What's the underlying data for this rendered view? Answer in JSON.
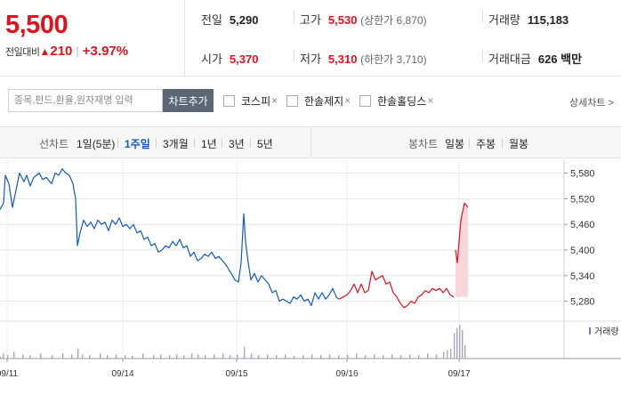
{
  "summary": {
    "price": "5,500",
    "change_label": "전일대비",
    "change_arrow": "▲",
    "change_value": "210",
    "change_sep": "|",
    "change_pct": "+3.97%",
    "prev_close_label": "전일",
    "prev_close": "5,290",
    "high_label": "고가",
    "high": "5,530",
    "upper_limit": "(상한가 6,870)",
    "volume_label": "거래량",
    "volume": "115,183",
    "open_label": "시가",
    "open": "5,370",
    "low_label": "저가",
    "low": "5,310",
    "lower_limit": "(하한가 3,710)",
    "amount_label": "거래대금",
    "amount": "626 백만"
  },
  "search": {
    "placeholder": "종목,펀드,환율,원자재명 입력",
    "add_button": "차트추가",
    "compare": [
      "코스피",
      "한솔제지",
      "한솔홀딩스"
    ],
    "remove_glyph": "×",
    "detail_link": "상세차트 >"
  },
  "tabs": {
    "line_label": "선차트",
    "line_tabs": [
      "1일(5분)",
      "1주일",
      "3개월",
      "1년",
      "3년",
      "5년"
    ],
    "active_line_tab": "1주일",
    "candle_label": "봉차트",
    "candle_tabs": [
      "일봉",
      "주봉",
      "월봉"
    ]
  },
  "colors": {
    "up": "#e1111d",
    "down": "#1259c3",
    "today_fill": "#f9d6d9",
    "volume_bar": "#a9a4c6",
    "grid": "#e5e5e5"
  },
  "chart_data": {
    "type": "line",
    "x_tick_labels": [
      "09/11",
      "09/14",
      "09/15",
      "09/16",
      "09/17"
    ],
    "y_ticks": [
      5280,
      5340,
      5400,
      5460,
      5520,
      5580
    ],
    "ylim": [
      5250,
      5600
    ],
    "volume_label": "거래량",
    "series": [
      {
        "segment": "past days (blue)",
        "color_key": "down",
        "points": [
          [
            0,
            5495
          ],
          [
            4,
            5510
          ],
          [
            6,
            5575
          ],
          [
            10,
            5555
          ],
          [
            14,
            5500
          ],
          [
            18,
            5540
          ],
          [
            22,
            5580
          ],
          [
            27,
            5560
          ],
          [
            30,
            5575
          ],
          [
            34,
            5550
          ],
          [
            38,
            5570
          ],
          [
            44,
            5580
          ],
          [
            48,
            5565
          ],
          [
            52,
            5570
          ],
          [
            58,
            5555
          ],
          [
            62,
            5580
          ],
          [
            66,
            5575
          ],
          [
            70,
            5590
          ],
          [
            74,
            5580
          ],
          [
            78,
            5575
          ],
          [
            82,
            5555
          ],
          [
            85,
            5520
          ],
          [
            87,
            5410
          ],
          [
            90,
            5440
          ],
          [
            94,
            5470
          ],
          [
            98,
            5455
          ],
          [
            102,
            5465
          ],
          [
            106,
            5450
          ],
          [
            110,
            5470
          ],
          [
            114,
            5460
          ],
          [
            118,
            5465
          ],
          [
            122,
            5445
          ],
          [
            126,
            5470
          ],
          [
            130,
            5460
          ],
          [
            134,
            5475
          ],
          [
            138,
            5455
          ],
          [
            142,
            5460
          ],
          [
            146,
            5450
          ],
          [
            150,
            5460
          ],
          [
            154,
            5440
          ],
          [
            158,
            5445
          ],
          [
            162,
            5425
          ],
          [
            166,
            5430
          ],
          [
            170,
            5410
          ],
          [
            174,
            5415
          ],
          [
            178,
            5395
          ],
          [
            182,
            5400
          ],
          [
            186,
            5410
          ],
          [
            190,
            5405
          ],
          [
            194,
            5420
          ],
          [
            198,
            5410
          ],
          [
            202,
            5425
          ],
          [
            206,
            5405
          ],
          [
            210,
            5410
          ],
          [
            214,
            5385
          ],
          [
            218,
            5395
          ],
          [
            222,
            5375
          ],
          [
            226,
            5380
          ],
          [
            230,
            5390
          ],
          [
            234,
            5385
          ],
          [
            238,
            5395
          ],
          [
            242,
            5380
          ],
          [
            246,
            5385
          ],
          [
            250,
            5375
          ],
          [
            254,
            5365
          ],
          [
            257,
            5355
          ],
          [
            260,
            5345
          ],
          [
            264,
            5330
          ],
          [
            268,
            5325
          ],
          [
            271,
            5370
          ],
          [
            274,
            5485
          ],
          [
            276,
            5420
          ],
          [
            279,
            5370
          ],
          [
            282,
            5330
          ],
          [
            286,
            5345
          ],
          [
            290,
            5325
          ],
          [
            294,
            5340
          ],
          [
            298,
            5330
          ],
          [
            302,
            5320
          ],
          [
            306,
            5300
          ],
          [
            310,
            5305
          ],
          [
            314,
            5280
          ],
          [
            318,
            5285
          ],
          [
            322,
            5280
          ],
          [
            326,
            5275
          ],
          [
            330,
            5290
          ],
          [
            334,
            5285
          ],
          [
            338,
            5295
          ],
          [
            342,
            5280
          ],
          [
            346,
            5285
          ],
          [
            350,
            5270
          ],
          [
            354,
            5300
          ],
          [
            358,
            5285
          ],
          [
            362,
            5300
          ],
          [
            366,
            5285
          ],
          [
            370,
            5295
          ],
          [
            374,
            5310
          ],
          [
            378,
            5290
          ],
          [
            381,
            5285
          ]
        ]
      },
      {
        "segment": "09/16 (red)",
        "color_key": "up",
        "points": [
          [
            381,
            5285
          ],
          [
            386,
            5290
          ],
          [
            390,
            5295
          ],
          [
            394,
            5305
          ],
          [
            398,
            5320
          ],
          [
            402,
            5300
          ],
          [
            406,
            5320
          ],
          [
            410,
            5300
          ],
          [
            414,
            5305
          ],
          [
            418,
            5350
          ],
          [
            422,
            5330
          ],
          [
            426,
            5335
          ],
          [
            430,
            5340
          ],
          [
            434,
            5320
          ],
          [
            438,
            5325
          ],
          [
            442,
            5300
          ],
          [
            446,
            5290
          ],
          [
            450,
            5275
          ],
          [
            454,
            5265
          ],
          [
            458,
            5270
          ],
          [
            462,
            5280
          ],
          [
            466,
            5275
          ],
          [
            470,
            5290
          ],
          [
            474,
            5295
          ],
          [
            478,
            5305
          ],
          [
            482,
            5300
          ],
          [
            486,
            5310
          ],
          [
            490,
            5305
          ],
          [
            494,
            5310
          ],
          [
            498,
            5300
          ],
          [
            502,
            5310
          ],
          [
            506,
            5295
          ],
          [
            510,
            5290
          ]
        ]
      },
      {
        "segment": "09/17 today (red, filled)",
        "color_key": "up",
        "points": [
          [
            512,
            5400
          ],
          [
            514,
            5370
          ],
          [
            516,
            5420
          ],
          [
            518,
            5470
          ],
          [
            520,
            5490
          ],
          [
            522,
            5510
          ],
          [
            524,
            5505
          ],
          [
            526,
            5500
          ]
        ]
      }
    ],
    "volume": [
      [
        0,
        0.05
      ],
      [
        3,
        0.15
      ],
      [
        8,
        0.1
      ],
      [
        15,
        0.2
      ],
      [
        25,
        0.12
      ],
      [
        33,
        0.1
      ],
      [
        45,
        0.15
      ],
      [
        58,
        0.1
      ],
      [
        70,
        0.15
      ],
      [
        80,
        0.12
      ],
      [
        87,
        0.3
      ],
      [
        92,
        0.12
      ],
      [
        100,
        0.1
      ],
      [
        112,
        0.15
      ],
      [
        120,
        0.1
      ],
      [
        130,
        0.12
      ],
      [
        140,
        0.1
      ],
      [
        148,
        0.08
      ],
      [
        160,
        0.15
      ],
      [
        172,
        0.1
      ],
      [
        180,
        0.12
      ],
      [
        190,
        0.1
      ],
      [
        198,
        0.12
      ],
      [
        206,
        0.1
      ],
      [
        215,
        0.15
      ],
      [
        222,
        0.12
      ],
      [
        230,
        0.1
      ],
      [
        240,
        0.12
      ],
      [
        250,
        0.15
      ],
      [
        258,
        0.1
      ],
      [
        266,
        0.12
      ],
      [
        274,
        0.35
      ],
      [
        282,
        0.15
      ],
      [
        290,
        0.1
      ],
      [
        300,
        0.12
      ],
      [
        310,
        0.1
      ],
      [
        320,
        0.12
      ],
      [
        330,
        0.08
      ],
      [
        340,
        0.1
      ],
      [
        350,
        0.12
      ],
      [
        360,
        0.1
      ],
      [
        370,
        0.12
      ],
      [
        380,
        0.1
      ],
      [
        390,
        0.12
      ],
      [
        400,
        0.15
      ],
      [
        410,
        0.1
      ],
      [
        420,
        0.12
      ],
      [
        430,
        0.1
      ],
      [
        440,
        0.12
      ],
      [
        450,
        0.1
      ],
      [
        460,
        0.12
      ],
      [
        470,
        0.1
      ],
      [
        480,
        0.15
      ],
      [
        490,
        0.12
      ],
      [
        498,
        0.2
      ],
      [
        502,
        0.25
      ],
      [
        506,
        0.3
      ],
      [
        510,
        0.75
      ],
      [
        513,
        0.9
      ],
      [
        516,
        1.0
      ],
      [
        519,
        0.85
      ],
      [
        522,
        0.4
      ]
    ]
  }
}
